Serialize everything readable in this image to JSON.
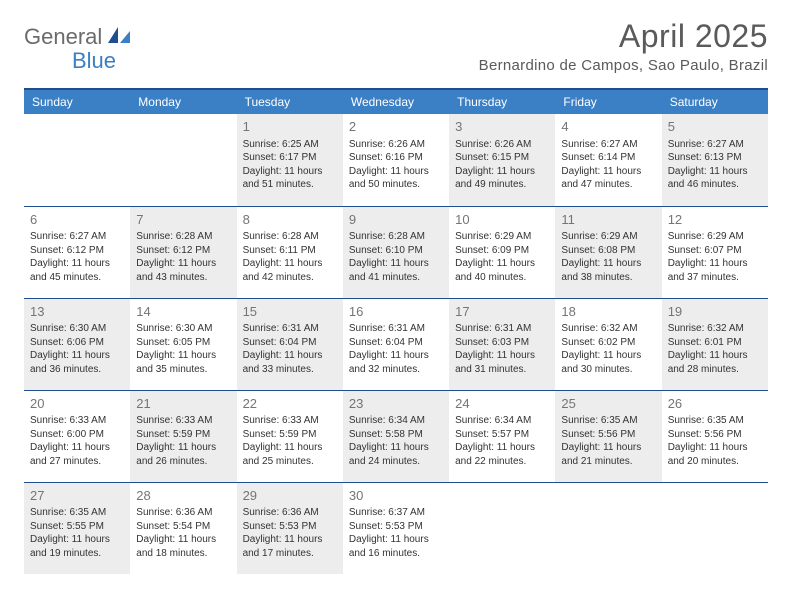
{
  "logo": {
    "part1": "General",
    "part2": "Blue"
  },
  "title": "April 2025",
  "location": "Bernardino de Campos, Sao Paulo, Brazil",
  "colors": {
    "header_bg": "#3b7fc4",
    "header_border": "#1f4e8c",
    "shaded_bg": "#ededed",
    "text": "#333333",
    "muted": "#757575"
  },
  "day_headers": [
    "Sunday",
    "Monday",
    "Tuesday",
    "Wednesday",
    "Thursday",
    "Friday",
    "Saturday"
  ],
  "weeks": [
    [
      {
        "empty": true
      },
      {
        "empty": true
      },
      {
        "num": "1",
        "shaded": true,
        "sunrise": "Sunrise: 6:25 AM",
        "sunset": "Sunset: 6:17 PM",
        "day1": "Daylight: 11 hours",
        "day2": "and 51 minutes."
      },
      {
        "num": "2",
        "shaded": false,
        "sunrise": "Sunrise: 6:26 AM",
        "sunset": "Sunset: 6:16 PM",
        "day1": "Daylight: 11 hours",
        "day2": "and 50 minutes."
      },
      {
        "num": "3",
        "shaded": true,
        "sunrise": "Sunrise: 6:26 AM",
        "sunset": "Sunset: 6:15 PM",
        "day1": "Daylight: 11 hours",
        "day2": "and 49 minutes."
      },
      {
        "num": "4",
        "shaded": false,
        "sunrise": "Sunrise: 6:27 AM",
        "sunset": "Sunset: 6:14 PM",
        "day1": "Daylight: 11 hours",
        "day2": "and 47 minutes."
      },
      {
        "num": "5",
        "shaded": true,
        "sunrise": "Sunrise: 6:27 AM",
        "sunset": "Sunset: 6:13 PM",
        "day1": "Daylight: 11 hours",
        "day2": "and 46 minutes."
      }
    ],
    [
      {
        "num": "6",
        "shaded": false,
        "sunrise": "Sunrise: 6:27 AM",
        "sunset": "Sunset: 6:12 PM",
        "day1": "Daylight: 11 hours",
        "day2": "and 45 minutes."
      },
      {
        "num": "7",
        "shaded": true,
        "sunrise": "Sunrise: 6:28 AM",
        "sunset": "Sunset: 6:12 PM",
        "day1": "Daylight: 11 hours",
        "day2": "and 43 minutes."
      },
      {
        "num": "8",
        "shaded": false,
        "sunrise": "Sunrise: 6:28 AM",
        "sunset": "Sunset: 6:11 PM",
        "day1": "Daylight: 11 hours",
        "day2": "and 42 minutes."
      },
      {
        "num": "9",
        "shaded": true,
        "sunrise": "Sunrise: 6:28 AM",
        "sunset": "Sunset: 6:10 PM",
        "day1": "Daylight: 11 hours",
        "day2": "and 41 minutes."
      },
      {
        "num": "10",
        "shaded": false,
        "sunrise": "Sunrise: 6:29 AM",
        "sunset": "Sunset: 6:09 PM",
        "day1": "Daylight: 11 hours",
        "day2": "and 40 minutes."
      },
      {
        "num": "11",
        "shaded": true,
        "sunrise": "Sunrise: 6:29 AM",
        "sunset": "Sunset: 6:08 PM",
        "day1": "Daylight: 11 hours",
        "day2": "and 38 minutes."
      },
      {
        "num": "12",
        "shaded": false,
        "sunrise": "Sunrise: 6:29 AM",
        "sunset": "Sunset: 6:07 PM",
        "day1": "Daylight: 11 hours",
        "day2": "and 37 minutes."
      }
    ],
    [
      {
        "num": "13",
        "shaded": true,
        "sunrise": "Sunrise: 6:30 AM",
        "sunset": "Sunset: 6:06 PM",
        "day1": "Daylight: 11 hours",
        "day2": "and 36 minutes."
      },
      {
        "num": "14",
        "shaded": false,
        "sunrise": "Sunrise: 6:30 AM",
        "sunset": "Sunset: 6:05 PM",
        "day1": "Daylight: 11 hours",
        "day2": "and 35 minutes."
      },
      {
        "num": "15",
        "shaded": true,
        "sunrise": "Sunrise: 6:31 AM",
        "sunset": "Sunset: 6:04 PM",
        "day1": "Daylight: 11 hours",
        "day2": "and 33 minutes."
      },
      {
        "num": "16",
        "shaded": false,
        "sunrise": "Sunrise: 6:31 AM",
        "sunset": "Sunset: 6:04 PM",
        "day1": "Daylight: 11 hours",
        "day2": "and 32 minutes."
      },
      {
        "num": "17",
        "shaded": true,
        "sunrise": "Sunrise: 6:31 AM",
        "sunset": "Sunset: 6:03 PM",
        "day1": "Daylight: 11 hours",
        "day2": "and 31 minutes."
      },
      {
        "num": "18",
        "shaded": false,
        "sunrise": "Sunrise: 6:32 AM",
        "sunset": "Sunset: 6:02 PM",
        "day1": "Daylight: 11 hours",
        "day2": "and 30 minutes."
      },
      {
        "num": "19",
        "shaded": true,
        "sunrise": "Sunrise: 6:32 AM",
        "sunset": "Sunset: 6:01 PM",
        "day1": "Daylight: 11 hours",
        "day2": "and 28 minutes."
      }
    ],
    [
      {
        "num": "20",
        "shaded": false,
        "sunrise": "Sunrise: 6:33 AM",
        "sunset": "Sunset: 6:00 PM",
        "day1": "Daylight: 11 hours",
        "day2": "and 27 minutes."
      },
      {
        "num": "21",
        "shaded": true,
        "sunrise": "Sunrise: 6:33 AM",
        "sunset": "Sunset: 5:59 PM",
        "day1": "Daylight: 11 hours",
        "day2": "and 26 minutes."
      },
      {
        "num": "22",
        "shaded": false,
        "sunrise": "Sunrise: 6:33 AM",
        "sunset": "Sunset: 5:59 PM",
        "day1": "Daylight: 11 hours",
        "day2": "and 25 minutes."
      },
      {
        "num": "23",
        "shaded": true,
        "sunrise": "Sunrise: 6:34 AM",
        "sunset": "Sunset: 5:58 PM",
        "day1": "Daylight: 11 hours",
        "day2": "and 24 minutes."
      },
      {
        "num": "24",
        "shaded": false,
        "sunrise": "Sunrise: 6:34 AM",
        "sunset": "Sunset: 5:57 PM",
        "day1": "Daylight: 11 hours",
        "day2": "and 22 minutes."
      },
      {
        "num": "25",
        "shaded": true,
        "sunrise": "Sunrise: 6:35 AM",
        "sunset": "Sunset: 5:56 PM",
        "day1": "Daylight: 11 hours",
        "day2": "and 21 minutes."
      },
      {
        "num": "26",
        "shaded": false,
        "sunrise": "Sunrise: 6:35 AM",
        "sunset": "Sunset: 5:56 PM",
        "day1": "Daylight: 11 hours",
        "day2": "and 20 minutes."
      }
    ],
    [
      {
        "num": "27",
        "shaded": true,
        "sunrise": "Sunrise: 6:35 AM",
        "sunset": "Sunset: 5:55 PM",
        "day1": "Daylight: 11 hours",
        "day2": "and 19 minutes."
      },
      {
        "num": "28",
        "shaded": false,
        "sunrise": "Sunrise: 6:36 AM",
        "sunset": "Sunset: 5:54 PM",
        "day1": "Daylight: 11 hours",
        "day2": "and 18 minutes."
      },
      {
        "num": "29",
        "shaded": true,
        "sunrise": "Sunrise: 6:36 AM",
        "sunset": "Sunset: 5:53 PM",
        "day1": "Daylight: 11 hours",
        "day2": "and 17 minutes."
      },
      {
        "num": "30",
        "shaded": false,
        "sunrise": "Sunrise: 6:37 AM",
        "sunset": "Sunset: 5:53 PM",
        "day1": "Daylight: 11 hours",
        "day2": "and 16 minutes."
      },
      {
        "empty": true
      },
      {
        "empty": true
      },
      {
        "empty": true
      }
    ]
  ]
}
